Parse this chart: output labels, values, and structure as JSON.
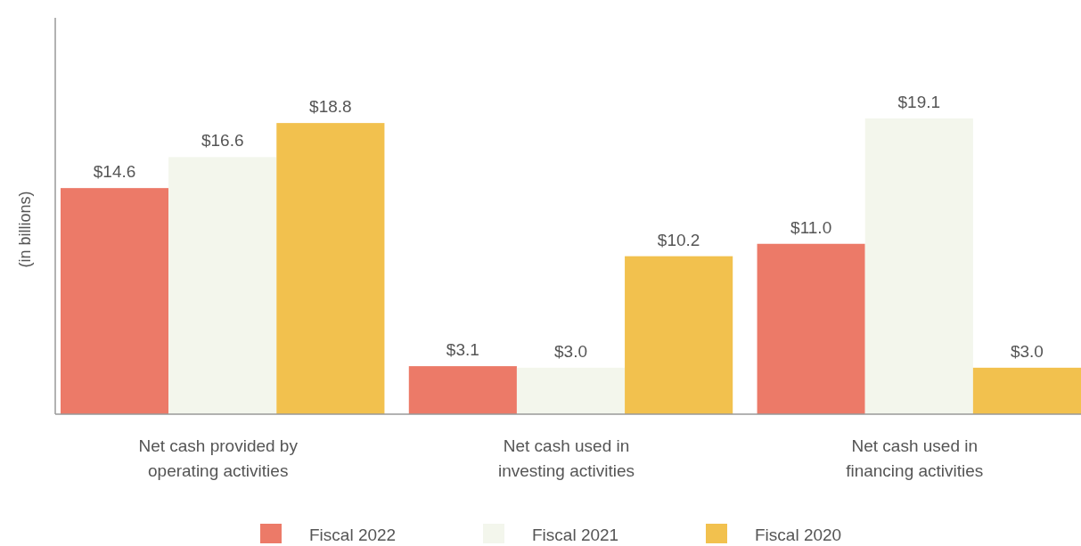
{
  "chart_data": {
    "type": "bar",
    "ylabel": "(in billions)",
    "categories": [
      "Net cash provided by operating activities",
      "Net cash used in investing activities",
      "Net cash used in financing activities"
    ],
    "series": [
      {
        "name": "Fiscal 2022",
        "color": "#ec7a68",
        "values": [
          14.6,
          3.1,
          11.0
        ],
        "value_labels": [
          "$14.6",
          "$3.1",
          "$11.0"
        ]
      },
      {
        "name": "Fiscal 2021",
        "color": "#f3f6ec",
        "values": [
          16.6,
          3.0,
          19.1
        ],
        "value_labels": [
          "$16.6",
          "$3.0",
          "$19.1"
        ]
      },
      {
        "name": "Fiscal 2020",
        "color": "#f2c14e",
        "values": [
          18.8,
          10.2,
          3.0
        ],
        "value_labels": [
          "$18.8",
          "$10.2",
          "$3.0"
        ]
      }
    ],
    "legend": "bottom"
  }
}
